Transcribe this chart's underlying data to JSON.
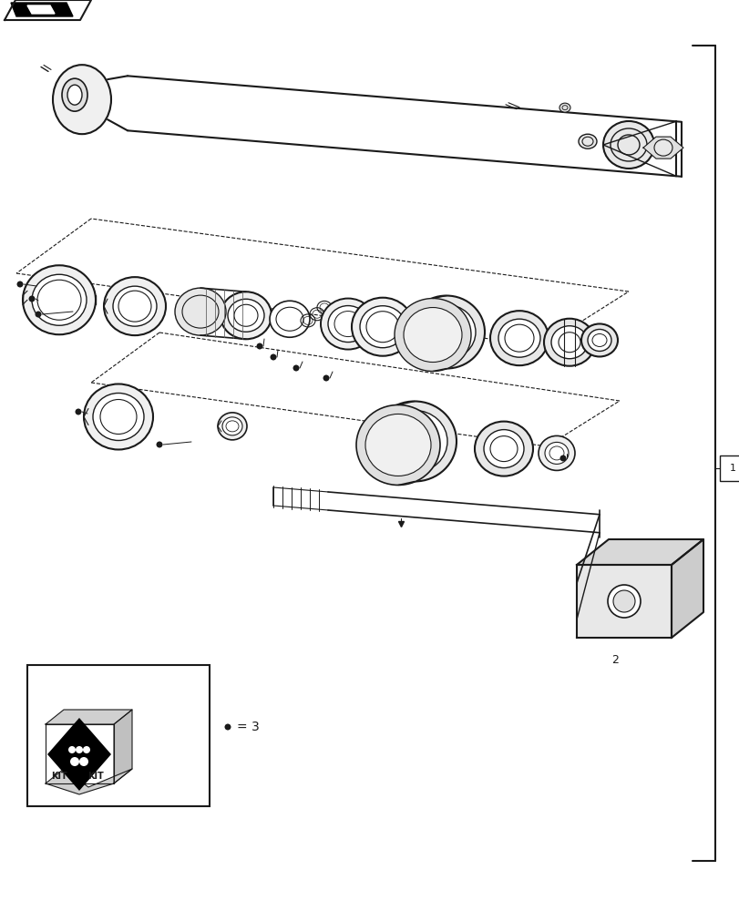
{
  "bg": "#ffffff",
  "lc": "#1a1a1a",
  "fig_w": 8.12,
  "fig_h": 10.0,
  "dpi": 100
}
